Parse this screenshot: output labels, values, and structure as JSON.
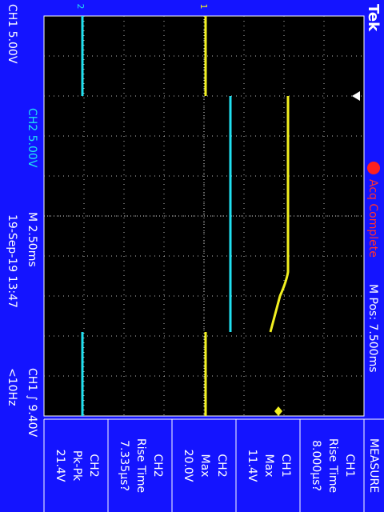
{
  "header": {
    "brand": "Tek",
    "status": "Acq Complete",
    "position": "M Pos: 7.500ms"
  },
  "settings": {
    "ch1_scale": "CH1 5.00V",
    "ch2_scale": "CH2 5.00V",
    "timebase": "M 2.50ms",
    "timestamp": "19-Sep-19 13:47",
    "trigger": "CH1 ∫ 9.40V",
    "frequency": "<10Hz"
  },
  "markers": {
    "ch1": "1",
    "ch2": "2"
  },
  "measure": {
    "title": "MEASURE",
    "items": [
      {
        "source": "CH1",
        "label": "Rise Time",
        "value": "8.000µs?"
      },
      {
        "source": "CH1",
        "label": "Max",
        "value": "11.4V"
      },
      {
        "source": "CH2",
        "label": "Max",
        "value": "20.0V"
      },
      {
        "source": "CH2",
        "label": "Rise Time",
        "value": "7.335µs?"
      },
      {
        "source": "CH2",
        "label": "Pk-Pk",
        "value": "21.4V"
      }
    ]
  }
}
